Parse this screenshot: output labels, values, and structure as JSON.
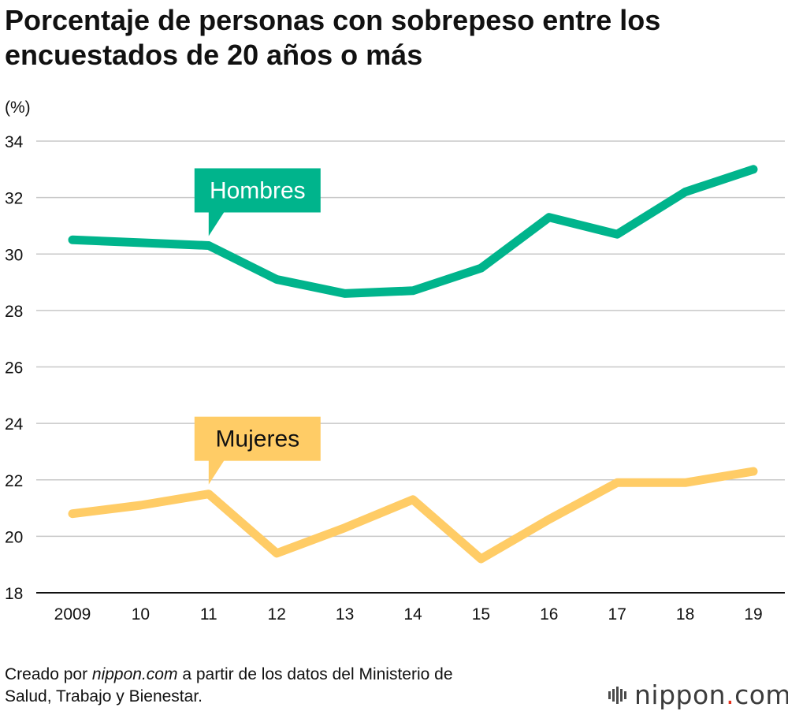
{
  "title_lines": [
    "Porcentaje de personas con sobrepeso entre los",
    "encuestados de 20 años o más"
  ],
  "chart_data": {
    "type": "line",
    "unit_label": "(%)",
    "x": [
      "2009",
      "10",
      "11",
      "12",
      "13",
      "14",
      "15",
      "16",
      "17",
      "18",
      "19"
    ],
    "ylim": [
      18,
      34
    ],
    "yticks": [
      "18",
      "20",
      "22",
      "24",
      "26",
      "28",
      "30",
      "32",
      "34"
    ],
    "grid": true,
    "series": [
      {
        "name": "Hombres",
        "color": "#00b48c",
        "values": [
          30.5,
          30.4,
          30.3,
          29.1,
          28.6,
          28.7,
          29.5,
          31.3,
          30.7,
          32.2,
          33.0
        ]
      },
      {
        "name": "Mujeres",
        "color": "#ffcc66",
        "values": [
          20.8,
          21.1,
          21.5,
          19.4,
          20.3,
          21.3,
          19.2,
          20.6,
          21.9,
          21.9,
          22.3
        ]
      }
    ]
  },
  "source": {
    "prefix": "Creado por ",
    "site": "nippon.com",
    "suffix": " a partir de los datos del Ministerio de",
    "line2": "Salud, Trabajo y Bienestar."
  },
  "logo": {
    "name": "nippon",
    "dot": ".",
    "tld": "com"
  }
}
